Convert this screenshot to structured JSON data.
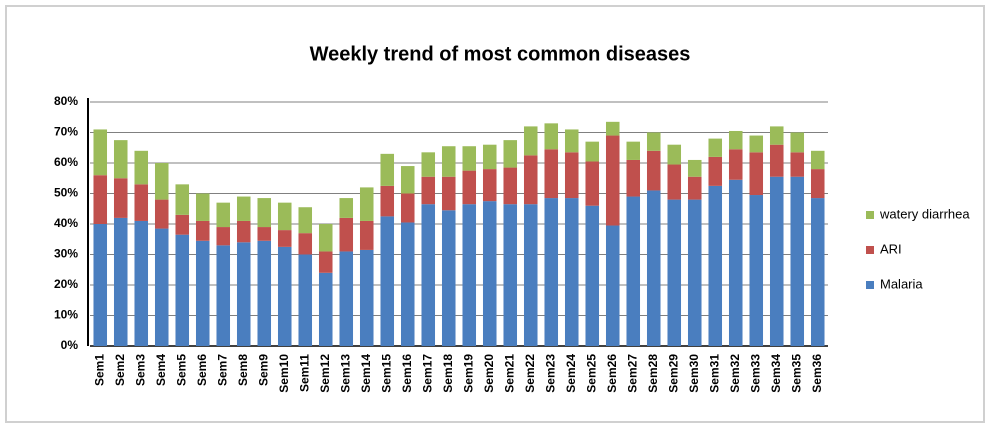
{
  "chart_data": {
    "type": "stacked_bar",
    "title": "Weekly trend of most common diseases",
    "categories": [
      "Sem1",
      "Sem2",
      "Sem3",
      "Sem4",
      "Sem5",
      "Sem6",
      "Sem7",
      "Sem8",
      "Sem9",
      "Sem10",
      "Sem11",
      "Sem12",
      "Sem13",
      "Sem14",
      "Sem15",
      "Sem16",
      "Sem17",
      "Sem18",
      "Sem19",
      "Sem20",
      "Sem21",
      "Sem22",
      "Sem23",
      "Sem24",
      "Sem25",
      "Sem26",
      "Sem27",
      "Sem28",
      "Sem29",
      "Sem30",
      "Sem31",
      "Sem32",
      "Sem33",
      "Sem34",
      "Sem35",
      "Sem36"
    ],
    "series": [
      {
        "name": "Malaria",
        "color": "#4a7ebf",
        "values": [
          40,
          42,
          41,
          38.5,
          36.5,
          34.5,
          33,
          34,
          34.5,
          32.5,
          30,
          24,
          31,
          31.5,
          42.5,
          40.5,
          46.5,
          44.5,
          46.5,
          47.5,
          46.5,
          46.5,
          48.5,
          48.5,
          46,
          39.5,
          49,
          51,
          48,
          48,
          52.5,
          54.5,
          49.5,
          55.5,
          55.5,
          48.5
        ]
      },
      {
        "name": "ARI",
        "color": "#c0504d",
        "values": [
          16,
          13,
          12,
          9.5,
          6.5,
          6.5,
          6,
          7,
          4.5,
          5.5,
          7,
          7,
          11,
          9.5,
          10,
          9.5,
          9,
          11,
          11,
          10.5,
          12,
          16,
          16,
          15,
          14.5,
          29.5,
          12,
          13,
          11.5,
          7.5,
          9.5,
          10,
          14,
          10.5,
          8,
          9.5
        ]
      },
      {
        "name": "watery diarrhea",
        "color": "#9bbb59",
        "values": [
          15,
          12.5,
          11,
          12,
          10,
          9,
          8,
          8,
          9.5,
          9,
          8.5,
          9,
          6.5,
          11,
          10.5,
          9,
          8,
          10,
          8,
          8,
          9,
          9.5,
          8.5,
          7.5,
          6.5,
          4.5,
          6,
          6,
          6.5,
          5.5,
          6,
          6,
          5.5,
          6,
          6.5,
          6
        ]
      }
    ],
    "ylim": [
      0,
      80
    ],
    "yticks": [
      {
        "value": 0,
        "label": "0%"
      },
      {
        "value": 10,
        "label": "10%"
      },
      {
        "value": 20,
        "label": "20%"
      },
      {
        "value": 30,
        "label": "30%"
      },
      {
        "value": 40,
        "label": "40%"
      },
      {
        "value": 50,
        "label": "50%"
      },
      {
        "value": 60,
        "label": "60%"
      },
      {
        "value": 70,
        "label": "70%"
      },
      {
        "value": 80,
        "label": "80%"
      }
    ],
    "grid": true,
    "legend": "right"
  }
}
